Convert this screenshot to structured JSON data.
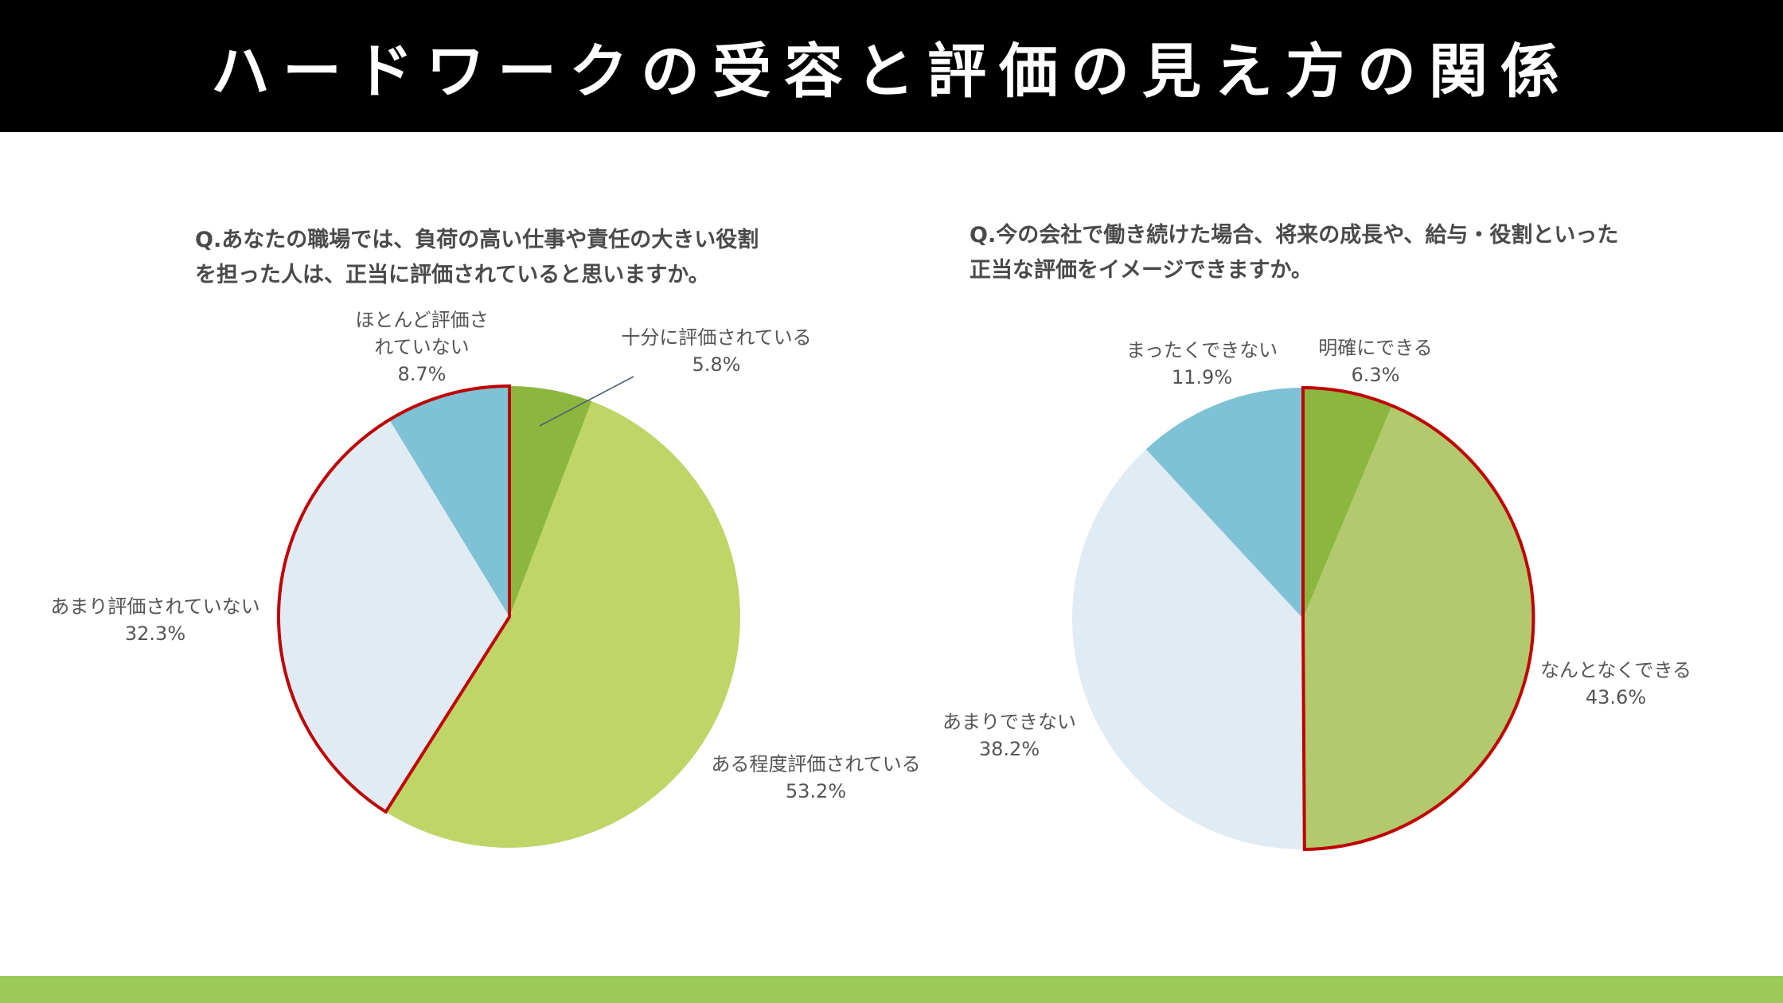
{
  "header": {
    "title": "ハードワークの受容と評価の見え方の関係"
  },
  "colors": {
    "header_bg": "#000000",
    "footer_bar": "#9ccb5c",
    "highlight_border": "#c00000",
    "dark_green": "#8bb73f",
    "light_green": "#c0d567",
    "olive_green": "#b2c96e",
    "pale_blue": "#e1ebf3",
    "teal_blue": "#7fc1d5"
  },
  "chart_data": [
    {
      "type": "pie",
      "title_lines": [
        "Q.あなたの職場では、負荷の高い仕事や責任の大きい役割",
        "を担った人は、正当に評価されていると思いますか。"
      ],
      "start": "12 o'clock",
      "direction": "clockwise",
      "slices": [
        {
          "label_lines": [
            "十分に評価されている"
          ],
          "value": 5.8,
          "value_text": "5.8%",
          "color": "#8bb73f",
          "highlighted": false
        },
        {
          "label_lines": [
            "ある程度評価されている"
          ],
          "value": 53.2,
          "value_text": "53.2%",
          "color": "#c0d567",
          "highlighted": false
        },
        {
          "label_lines": [
            "あまり評価されていない"
          ],
          "value": 32.3,
          "value_text": "32.3%",
          "color": "#e1ebf3",
          "highlighted": true
        },
        {
          "label_lines": [
            "ほとんど評価さ",
            "れていない"
          ],
          "value": 8.7,
          "value_text": "8.7%",
          "color": "#7fc1d5",
          "highlighted": true
        }
      ]
    },
    {
      "type": "pie",
      "title_lines": [
        "Q.今の会社で働き続けた場合、将来の成長や、給与・役割といった",
        "正当な評価をイメージできますか。"
      ],
      "start": "12 o'clock",
      "direction": "clockwise",
      "slices": [
        {
          "label_lines": [
            "明確にできる"
          ],
          "value": 6.3,
          "value_text": "6.3%",
          "color": "#8bb73f",
          "highlighted": true
        },
        {
          "label_lines": [
            "なんとなくできる"
          ],
          "value": 43.6,
          "value_text": "43.6%",
          "color": "#b2c96e",
          "highlighted": true
        },
        {
          "label_lines": [
            "あまりできない"
          ],
          "value": 38.2,
          "value_text": "38.2%",
          "color": "#e1ebf3",
          "highlighted": false
        },
        {
          "label_lines": [
            "まったくできない"
          ],
          "value": 11.9,
          "value_text": "11.9%",
          "color": "#7fc1d5",
          "highlighted": false
        }
      ]
    }
  ]
}
